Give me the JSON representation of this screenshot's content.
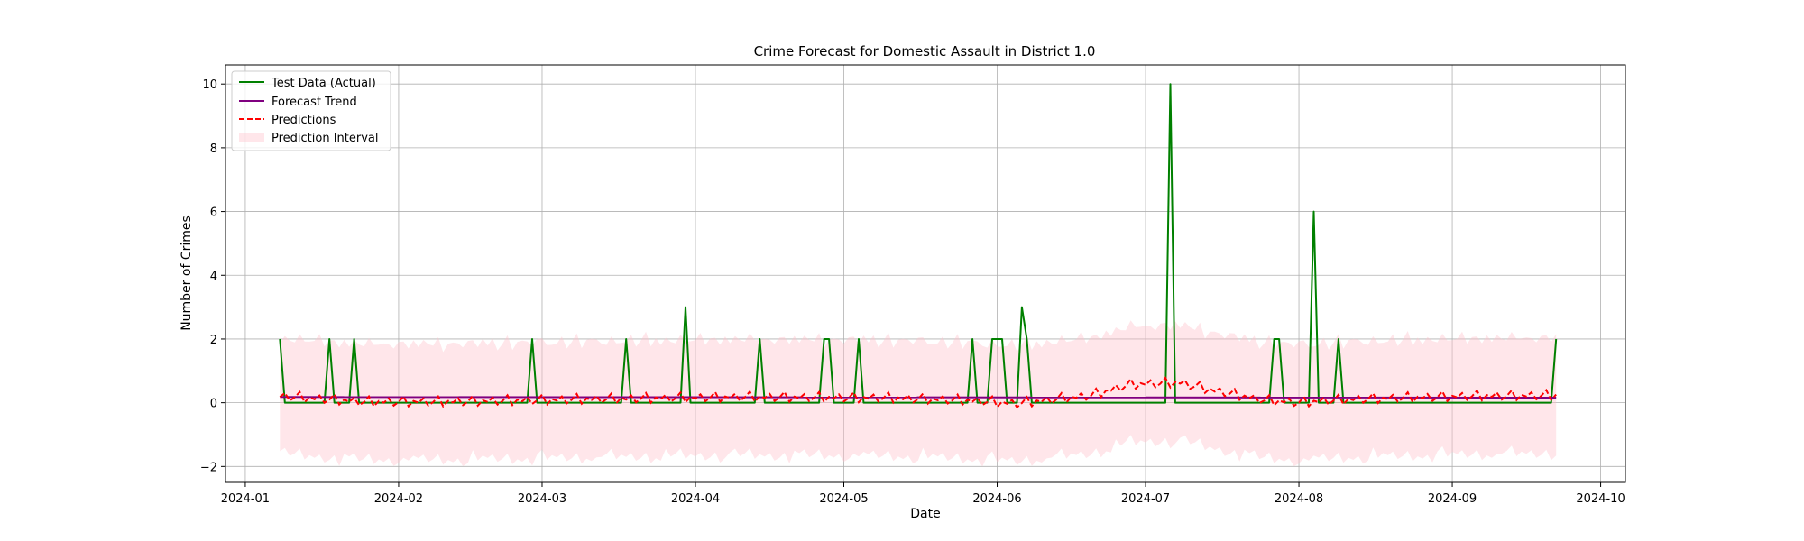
{
  "chart_data": {
    "type": "line",
    "title": "Crime Forecast for Domestic Assault in District 1.0",
    "xlabel": "Date",
    "ylabel": "Number of Crimes",
    "x_start": "2024-01-08",
    "x_end": "2024-09-22",
    "xlim": [
      "2023-12-28",
      "2024-10-06"
    ],
    "ylim": [
      -2.5,
      10.6
    ],
    "xticks": [
      "2024-01-01",
      "2024-02-01",
      "2024-03-01",
      "2024-04-01",
      "2024-05-01",
      "2024-06-01",
      "2024-07-01",
      "2024-08-01",
      "2024-09-01",
      "2024-10-01"
    ],
    "xtick_labels": [
      "2024-01",
      "2024-02",
      "2024-03",
      "2024-04",
      "2024-05",
      "2024-06",
      "2024-07",
      "2024-08",
      "2024-09",
      "2024-10"
    ],
    "yticks": [
      -2,
      0,
      2,
      4,
      6,
      8,
      10
    ],
    "ytick_labels": [
      "−2",
      "0",
      "2",
      "4",
      "6",
      "8",
      "10"
    ],
    "grid": true,
    "legend_position": "top-left",
    "series": [
      {
        "name": "Test Data (Actual)",
        "kind": "line",
        "color": "#008000",
        "dash": "solid",
        "points": [
          [
            "2024-01-08",
            2
          ],
          [
            "2024-01-09",
            0
          ],
          [
            "2024-01-17",
            0
          ],
          [
            "2024-01-18",
            2
          ],
          [
            "2024-01-19",
            0
          ],
          [
            "2024-01-22",
            0
          ],
          [
            "2024-01-23",
            2
          ],
          [
            "2024-01-24",
            0
          ],
          [
            "2024-02-27",
            0
          ],
          [
            "2024-02-28",
            2
          ],
          [
            "2024-02-29",
            0
          ],
          [
            "2024-03-17",
            0
          ],
          [
            "2024-03-18",
            2
          ],
          [
            "2024-03-19",
            0
          ],
          [
            "2024-03-29",
            0
          ],
          [
            "2024-03-30",
            3
          ],
          [
            "2024-03-31",
            0
          ],
          [
            "2024-04-13",
            0
          ],
          [
            "2024-04-14",
            2
          ],
          [
            "2024-04-15",
            0
          ],
          [
            "2024-04-26",
            0
          ],
          [
            "2024-04-27",
            2
          ],
          [
            "2024-04-28",
            2
          ],
          [
            "2024-04-29",
            0
          ],
          [
            "2024-05-03",
            0
          ],
          [
            "2024-05-04",
            2
          ],
          [
            "2024-05-05",
            0
          ],
          [
            "2024-05-26",
            0
          ],
          [
            "2024-05-27",
            2
          ],
          [
            "2024-05-28",
            0
          ],
          [
            "2024-05-30",
            0
          ],
          [
            "2024-05-31",
            2
          ],
          [
            "2024-06-02",
            2
          ],
          [
            "2024-06-03",
            0
          ],
          [
            "2024-06-05",
            0
          ],
          [
            "2024-06-06",
            3
          ],
          [
            "2024-06-07",
            2
          ],
          [
            "2024-06-08",
            0
          ],
          [
            "2024-07-05",
            0
          ],
          [
            "2024-07-06",
            10
          ],
          [
            "2024-07-07",
            0
          ],
          [
            "2024-07-26",
            0
          ],
          [
            "2024-07-27",
            2
          ],
          [
            "2024-07-28",
            2
          ],
          [
            "2024-07-29",
            0
          ],
          [
            "2024-08-03",
            0
          ],
          [
            "2024-08-04",
            6
          ],
          [
            "2024-08-05",
            0
          ],
          [
            "2024-08-08",
            0
          ],
          [
            "2024-08-09",
            2
          ],
          [
            "2024-08-10",
            0
          ],
          [
            "2024-09-21",
            0
          ],
          [
            "2024-09-22",
            2
          ]
        ]
      },
      {
        "name": "Forecast Trend",
        "kind": "line",
        "color": "#800080",
        "dash": "solid",
        "points": [
          [
            "2024-01-08",
            0.18
          ],
          [
            "2024-09-22",
            0.16
          ]
        ]
      },
      {
        "name": "Predictions",
        "kind": "line",
        "color": "#ff0000",
        "dash": "dashed",
        "base_points": [
          [
            "2024-01-08",
            0.18
          ],
          [
            "2024-01-25",
            0.0
          ],
          [
            "2024-02-10",
            0.0
          ],
          [
            "2024-03-10",
            0.08
          ],
          [
            "2024-04-10",
            0.15
          ],
          [
            "2024-05-10",
            0.12
          ],
          [
            "2024-05-25",
            0.05
          ],
          [
            "2024-06-05",
            -0.05
          ],
          [
            "2024-06-20",
            0.2
          ],
          [
            "2024-06-28",
            0.55
          ],
          [
            "2024-07-08",
            0.6
          ],
          [
            "2024-07-15",
            0.35
          ],
          [
            "2024-07-25",
            0.05
          ],
          [
            "2024-08-01",
            -0.02
          ],
          [
            "2024-08-12",
            0.08
          ],
          [
            "2024-09-05",
            0.18
          ],
          [
            "2024-09-22",
            0.2
          ]
        ],
        "amplitude": 0.2
      },
      {
        "name": "Prediction Interval",
        "kind": "band",
        "color": "#ffc0cb",
        "opacity": 0.4,
        "half_width": 1.7
      }
    ]
  }
}
